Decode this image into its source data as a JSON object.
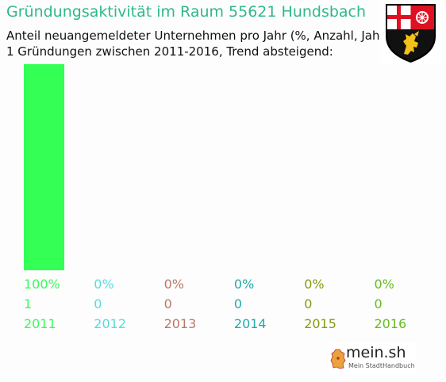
{
  "title": "Gründungsaktivität im Raum 55621 Hundsbach",
  "subtitle_line1": "Anteil neuangemeldeter Unternehmen pro Jahr (%, Anzahl, Jahr)",
  "subtitle_line2": "1 Gründungen zwischen 2011-2016, Trend absteigend:",
  "logo": {
    "brand": "mein.sh",
    "tagline": "Mein StadtHandbuch"
  },
  "icons": {
    "crest": "coat-of-arms-icon",
    "logo_map": "germany-map-icon"
  },
  "chart_data": {
    "type": "bar",
    "categories": [
      "2011",
      "2012",
      "2013",
      "2014",
      "2015",
      "2016"
    ],
    "percent_labels": [
      "100%",
      "0%",
      "0%",
      "0%",
      "0%",
      "0%"
    ],
    "count_labels": [
      "1",
      "0",
      "0",
      "0",
      "0",
      "0"
    ],
    "values": [
      100,
      0,
      0,
      0,
      0,
      0
    ],
    "colors": [
      "#33ff55",
      "#55dddd",
      "#bb7766",
      "#22aaaa",
      "#889911",
      "#66bb22"
    ],
    "ylim": [
      0,
      100
    ]
  }
}
